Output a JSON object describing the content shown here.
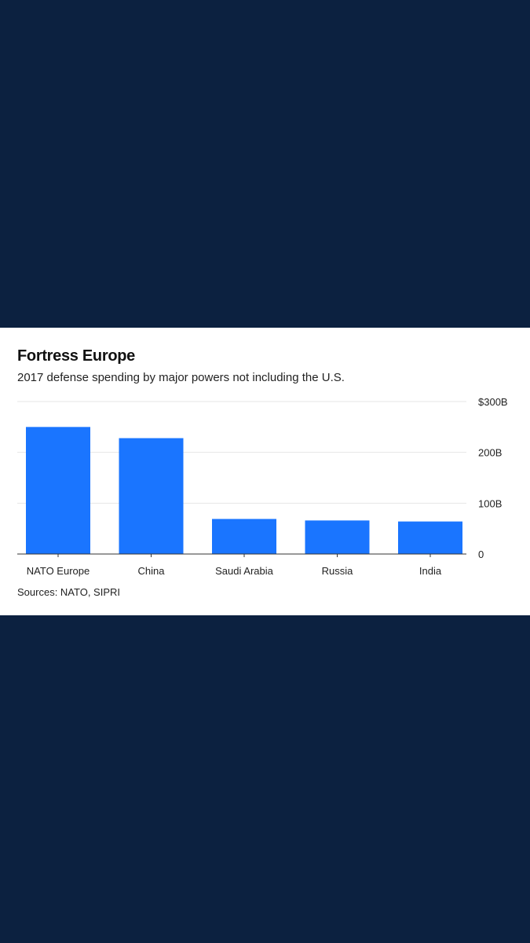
{
  "chart_data": {
    "type": "bar",
    "title": "Fortress Europe",
    "subtitle": "2017 defense spending by major powers not including the U.S.",
    "categories": [
      "NATO Europe",
      "China",
      "Saudi Arabia",
      "Russia",
      "India"
    ],
    "values": [
      250,
      228,
      69,
      66,
      64
    ],
    "unit": "B",
    "ylim": [
      0,
      300
    ],
    "yticks": [
      {
        "value": 0,
        "label": "0"
      },
      {
        "value": 100,
        "label": "100B"
      },
      {
        "value": 200,
        "label": "200B"
      },
      {
        "value": 300,
        "label": "$300B"
      }
    ],
    "grid": true,
    "bar_color": "#1a75ff",
    "source": "Sources: NATO, SIPRI"
  },
  "colors": {
    "background": "#0c2140",
    "card": "#ffffff",
    "grid": "#e6e6e6",
    "axis": "#333333"
  }
}
